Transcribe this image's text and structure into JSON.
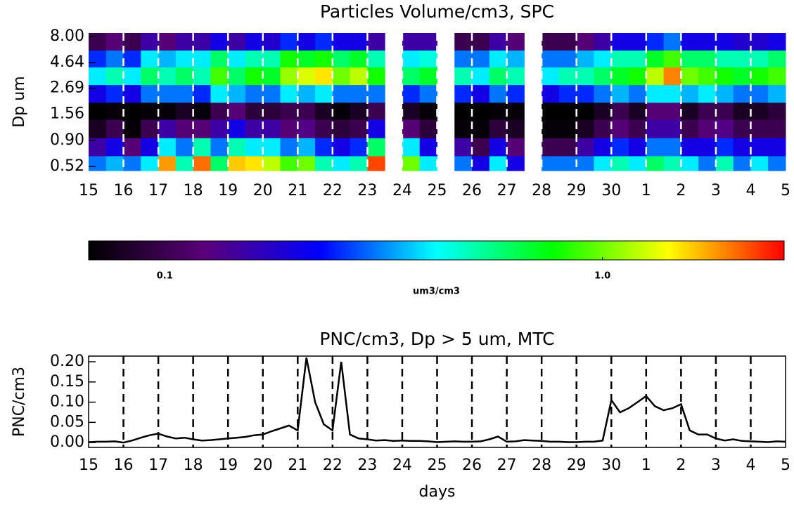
{
  "chart_data": [
    {
      "type": "heatmap",
      "title": "Particles Volume/cm3, SPC",
      "ylabel": "Dp um",
      "ylog": true,
      "xlim": [
        0,
        20
      ],
      "ylim": [
        0.476,
        8.6
      ],
      "xticks": [
        {
          "value": 0,
          "label": "15"
        },
        {
          "value": 1,
          "label": "16"
        },
        {
          "value": 2,
          "label": "17"
        },
        {
          "value": 3,
          "label": "18"
        },
        {
          "value": 4,
          "label": "19"
        },
        {
          "value": 5,
          "label": "20"
        },
        {
          "value": 6,
          "label": "21"
        },
        {
          "value": 7,
          "label": "22"
        },
        {
          "value": 8,
          "label": "23"
        },
        {
          "value": 9,
          "label": "24"
        },
        {
          "value": 10,
          "label": "25"
        },
        {
          "value": 11,
          "label": "26"
        },
        {
          "value": 12,
          "label": "27"
        },
        {
          "value": 13,
          "label": "28"
        },
        {
          "value": 14,
          "label": "29"
        },
        {
          "value": 15,
          "label": "30"
        },
        {
          "value": 16,
          "label": "1"
        },
        {
          "value": 17,
          "label": "2"
        },
        {
          "value": 18,
          "label": "3"
        },
        {
          "value": 19,
          "label": "4"
        },
        {
          "value": 20,
          "label": "5"
        }
      ],
      "yticks": [
        {
          "value": 8,
          "label": "8.00"
        },
        {
          "value": 4.64,
          "label": "4.64"
        },
        {
          "value": 2.69,
          "label": "2.69"
        },
        {
          "value": 1.56,
          "label": "1.56"
        },
        {
          "value": 0.9,
          "label": "0.90"
        },
        {
          "value": 0.52,
          "label": "0.52"
        }
      ],
      "grid_color": "#ffffff",
      "x": [
        0,
        0.5,
        1,
        1.5,
        2,
        2.5,
        3,
        3.5,
        4,
        4.5,
        5,
        5.5,
        6,
        6.5,
        7,
        7.5,
        8,
        8.5,
        9,
        9.5,
        10,
        10.5,
        11,
        11.5,
        12,
        12.5,
        13,
        13.5,
        14,
        14.5,
        15,
        15.5,
        16,
        16.5,
        17,
        17.5,
        18,
        18.5,
        19,
        19.5
      ],
      "y": [
        0.476,
        0.65,
        0.95,
        1.4,
        2.0,
        2.9,
        4.2,
        6.0
      ],
      "z": [
        [
          0.3,
          0.35,
          0.3,
          0.4,
          1.8,
          0.5,
          2.0,
          0.6,
          1.6,
          1.5,
          1.2,
          0.9,
          1.0,
          0.5,
          0.4,
          0.5,
          2.2,
          null,
          1.0,
          0.4,
          null,
          0.3,
          0.2,
          0.4,
          0.2,
          null,
          0.3,
          0.3,
          0.3,
          0.4,
          0.5,
          0.4,
          0.6,
          0.5,
          0.4,
          0.3,
          0.5,
          0.3,
          0.4,
          0.3
        ],
        [
          0.15,
          0.2,
          0.12,
          0.2,
          0.4,
          0.3,
          0.5,
          0.3,
          0.5,
          0.4,
          0.4,
          0.3,
          0.35,
          0.25,
          0.2,
          0.25,
          0.6,
          null,
          0.4,
          0.2,
          null,
          0.15,
          0.1,
          0.2,
          0.12,
          null,
          0.1,
          0.1,
          0.15,
          0.2,
          0.25,
          0.2,
          0.3,
          0.3,
          0.2,
          0.2,
          0.25,
          0.2,
          0.2,
          0.2
        ],
        [
          0.08,
          0.1,
          0.07,
          0.1,
          0.15,
          0.12,
          0.12,
          0.15,
          0.2,
          0.15,
          0.15,
          0.12,
          0.13,
          0.1,
          0.09,
          0.1,
          0.2,
          null,
          0.12,
          0.09,
          null,
          0.07,
          0.07,
          0.09,
          0.08,
          null,
          0.07,
          0.07,
          0.08,
          0.1,
          0.12,
          0.1,
          0.15,
          0.15,
          0.1,
          0.12,
          0.13,
          0.1,
          0.1,
          0.1
        ],
        [
          0.06,
          0.07,
          0.06,
          0.07,
          0.07,
          0.08,
          0.07,
          0.1,
          0.12,
          0.09,
          0.09,
          0.1,
          0.1,
          0.08,
          0.07,
          0.08,
          0.1,
          null,
          0.08,
          0.07,
          null,
          0.06,
          0.06,
          0.07,
          0.07,
          null,
          0.06,
          0.06,
          0.06,
          0.08,
          0.1,
          0.08,
          0.12,
          0.12,
          0.08,
          0.1,
          0.1,
          0.08,
          0.08,
          0.09
        ],
        [
          0.2,
          0.25,
          0.2,
          0.3,
          0.3,
          0.3,
          0.25,
          0.4,
          0.35,
          0.3,
          0.3,
          0.4,
          0.35,
          0.4,
          0.3,
          0.3,
          0.3,
          null,
          0.25,
          0.3,
          null,
          0.25,
          0.2,
          0.3,
          0.25,
          null,
          0.2,
          0.25,
          0.25,
          0.3,
          0.35,
          0.3,
          0.4,
          0.4,
          0.35,
          0.4,
          0.35,
          0.3,
          0.3,
          0.35
        ],
        [
          0.4,
          0.5,
          0.4,
          0.6,
          0.5,
          0.6,
          0.5,
          0.9,
          0.6,
          0.8,
          0.7,
          1.1,
          1.3,
          1.5,
          1.0,
          1.2,
          0.8,
          null,
          0.6,
          0.7,
          null,
          0.5,
          0.4,
          0.6,
          0.5,
          null,
          0.4,
          0.5,
          0.5,
          0.6,
          0.7,
          0.8,
          1.2,
          1.9,
          1.0,
          0.9,
          0.8,
          0.7,
          0.8,
          0.9
        ],
        [
          0.25,
          0.3,
          0.25,
          0.4,
          0.35,
          0.4,
          0.4,
          0.6,
          0.4,
          0.5,
          0.5,
          0.8,
          0.7,
          0.8,
          0.6,
          0.7,
          0.5,
          null,
          0.4,
          0.45,
          null,
          0.3,
          0.3,
          0.4,
          0.35,
          null,
          0.3,
          0.3,
          0.35,
          0.4,
          0.5,
          0.5,
          0.7,
          0.9,
          0.6,
          0.6,
          0.5,
          0.5,
          0.5,
          0.6
        ],
        [
          0.1,
          0.12,
          0.1,
          0.15,
          0.12,
          0.15,
          0.15,
          0.2,
          0.15,
          0.2,
          0.18,
          0.25,
          0.2,
          0.25,
          0.2,
          0.2,
          0.15,
          null,
          0.15,
          0.15,
          null,
          0.1,
          0.1,
          0.15,
          0.12,
          null,
          0.1,
          0.1,
          0.12,
          0.15,
          0.2,
          0.2,
          0.25,
          0.3,
          0.2,
          0.2,
          0.2,
          0.18,
          0.18,
          0.2
        ]
      ],
      "colorbar": {
        "label": "um3/cm3",
        "log": true,
        "lim": [
          0.067,
          2.6
        ],
        "ticks": [
          0.1,
          {
            "value": 1,
            "label": "1.0"
          }
        ],
        "colormap": [
          "#000000",
          "#5a007a",
          "#0000ff",
          "#00ffff",
          "#00ff00",
          "#ffff00",
          "#ff0000"
        ]
      }
    },
    {
      "type": "line",
      "title": "PNC/cm3, Dp > 5 um, MTC",
      "ylabel": "PNC/cm3",
      "xlabel": "days",
      "color": "#000000",
      "grid_color": "#000000",
      "xlim": [
        0,
        20
      ],
      "ylim": [
        -0.012,
        0.214
      ],
      "xticks": [
        {
          "value": 0,
          "label": "15"
        },
        {
          "value": 1,
          "label": "16"
        },
        {
          "value": 2,
          "label": "17"
        },
        {
          "value": 3,
          "label": "18"
        },
        {
          "value": 4,
          "label": "19"
        },
        {
          "value": 5,
          "label": "20"
        },
        {
          "value": 6,
          "label": "21"
        },
        {
          "value": 7,
          "label": "22"
        },
        {
          "value": 8,
          "label": "23"
        },
        {
          "value": 9,
          "label": "24"
        },
        {
          "value": 10,
          "label": "25"
        },
        {
          "value": 11,
          "label": "26"
        },
        {
          "value": 12,
          "label": "27"
        },
        {
          "value": 13,
          "label": "28"
        },
        {
          "value": 14,
          "label": "29"
        },
        {
          "value": 15,
          "label": "30"
        },
        {
          "value": 16,
          "label": "1"
        },
        {
          "value": 17,
          "label": "2"
        },
        {
          "value": 18,
          "label": "3"
        },
        {
          "value": 19,
          "label": "4"
        },
        {
          "value": 20,
          "label": "5"
        }
      ],
      "yticks": [
        {
          "value": 0,
          "label": "0.00"
        },
        {
          "value": 0.05,
          "label": "0.05"
        },
        {
          "value": 0.1,
          "label": "0.10"
        },
        {
          "value": 0.15,
          "label": "0.15"
        },
        {
          "value": 0.2,
          "label": "0.20"
        }
      ],
      "x": [
        0,
        0.25,
        0.5,
        0.75,
        1,
        1.25,
        1.5,
        1.75,
        2,
        2.25,
        2.5,
        2.75,
        3,
        3.25,
        3.5,
        3.75,
        4,
        4.25,
        4.5,
        4.75,
        5,
        5.25,
        5.5,
        5.75,
        6,
        6.25,
        6.5,
        6.75,
        7,
        7.25,
        7.5,
        7.75,
        8,
        8.25,
        8.5,
        8.75,
        9,
        9.25,
        9.5,
        9.75,
        10,
        10.25,
        10.5,
        10.75,
        11,
        11.25,
        11.5,
        11.75,
        12,
        12.25,
        12.5,
        12.75,
        13,
        13.25,
        13.5,
        13.75,
        14,
        14.25,
        14.5,
        14.75,
        15,
        15.25,
        15.5,
        15.75,
        16,
        16.25,
        16.5,
        16.75,
        17,
        17.25,
        17.5,
        17.75,
        18,
        18.25,
        18.5,
        18.75,
        19,
        19.25,
        19.5,
        19.75,
        20
      ],
      "values": [
        0.001,
        0.002,
        0.002,
        0.003,
        0.0,
        0.005,
        0.012,
        0.018,
        0.022,
        0.015,
        0.01,
        0.012,
        0.008,
        0.005,
        0.006,
        0.008,
        0.01,
        0.012,
        0.014,
        0.018,
        0.02,
        0.028,
        0.035,
        0.042,
        0.03,
        0.21,
        0.1,
        0.045,
        0.03,
        0.2,
        0.02,
        0.01,
        0.008,
        0.005,
        0.006,
        0.004,
        0.005,
        0.004,
        0.004,
        0.003,
        0.001,
        0.002,
        0.003,
        0.002,
        0.002,
        0.003,
        0.008,
        0.015,
        0.002,
        0.003,
        0.006,
        0.005,
        0.004,
        0.002,
        0.002,
        0.001,
        0.001,
        0.002,
        0.002,
        0.005,
        0.105,
        0.075,
        0.085,
        0.1,
        0.115,
        0.09,
        0.08,
        0.085,
        0.095,
        0.03,
        0.02,
        0.02,
        0.01,
        0.005,
        0.008,
        0.004,
        0.003,
        0.002,
        0.001,
        0.003,
        0.002
      ]
    }
  ]
}
